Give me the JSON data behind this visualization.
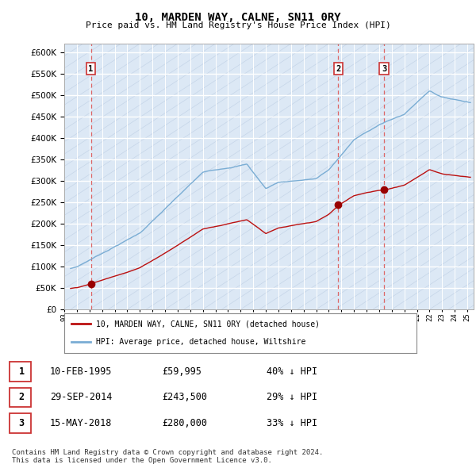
{
  "title": "10, MARDEN WAY, CALNE, SN11 0RY",
  "subtitle": "Price paid vs. HM Land Registry's House Price Index (HPI)",
  "ylim": [
    0,
    620000
  ],
  "yticks": [
    0,
    50000,
    100000,
    150000,
    200000,
    250000,
    300000,
    350000,
    400000,
    450000,
    500000,
    550000,
    600000
  ],
  "xlim_start": 1993.0,
  "xlim_end": 2025.5,
  "background_color": "#ffffff",
  "plot_bg_color": "#dce8f5",
  "grid_color": "#ffffff",
  "hpi_line_color": "#7aadd4",
  "price_line_color": "#bb1111",
  "sale_marker_color": "#990000",
  "dashed_line_color": "#dd4444",
  "transactions": [
    {
      "label": "1",
      "date_num": 1995.11,
      "price": 59995
    },
    {
      "label": "2",
      "date_num": 2014.75,
      "price": 243500
    },
    {
      "label": "3",
      "date_num": 2018.38,
      "price": 280000
    }
  ],
  "legend_entries": [
    "10, MARDEN WAY, CALNE, SN11 0RY (detached house)",
    "HPI: Average price, detached house, Wiltshire"
  ],
  "table_rows": [
    [
      "1",
      "10-FEB-1995",
      "£59,995",
      "40% ↓ HPI"
    ],
    [
      "2",
      "29-SEP-2014",
      "£243,500",
      "29% ↓ HPI"
    ],
    [
      "3",
      "15-MAY-2018",
      "£280,000",
      "33% ↓ HPI"
    ]
  ],
  "footer": "Contains HM Land Registry data © Crown copyright and database right 2024.\nThis data is licensed under the Open Government Licence v3.0.",
  "xtick_years": [
    1993,
    1994,
    1995,
    1996,
    1997,
    1998,
    1999,
    2000,
    2001,
    2002,
    2003,
    2004,
    2005,
    2006,
    2007,
    2008,
    2009,
    2010,
    2011,
    2012,
    2013,
    2014,
    2015,
    2016,
    2017,
    2018,
    2019,
    2020,
    2021,
    2022,
    2023,
    2024,
    2025
  ]
}
